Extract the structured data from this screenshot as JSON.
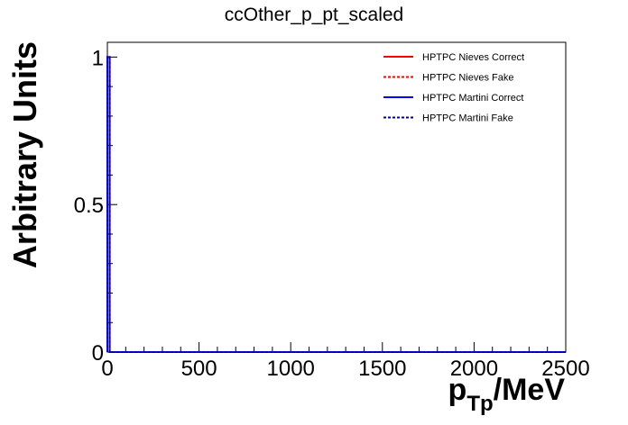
{
  "chart_data": {
    "type": "line",
    "title": "ccOther_p_pt_scaled",
    "ylabel": "Arbitrary Units",
    "xlabel": {
      "main": "p",
      "subscript": "Tp",
      "unit": "/MeV"
    },
    "xlim": [
      0,
      2500
    ],
    "ylim": [
      0,
      1.05
    ],
    "x_ticks": [
      0,
      500,
      1000,
      1500,
      2000,
      2500
    ],
    "x_tick_labels": [
      "0",
      "500",
      "1000",
      "1500",
      "2000",
      "2500"
    ],
    "y_ticks": [
      0,
      0.5,
      1
    ],
    "y_tick_labels": [
      "0",
      "0.5",
      "1"
    ],
    "legend_position": "top-right",
    "series": [
      {
        "name": "HPTPC Nieves Correct",
        "color": "#ff0000",
        "dash": "solid",
        "x": [
          0,
          0,
          12.5,
          12.5,
          2500
        ],
        "y": [
          0,
          1,
          1,
          0,
          0
        ]
      },
      {
        "name": "HPTPC Nieves Fake",
        "color": "#ff0000",
        "dash": "dotted",
        "x": [
          0,
          0,
          12.5,
          12.5,
          2500
        ],
        "y": [
          0,
          1,
          1,
          0,
          0
        ]
      },
      {
        "name": "HPTPC Martini Correct",
        "color": "#0000ff",
        "dash": "solid",
        "x": [
          0,
          0,
          12.5,
          12.5,
          2500
        ],
        "y": [
          0,
          1,
          1,
          0,
          0
        ]
      },
      {
        "name": "HPTPC Martini Fake",
        "color": "#000099",
        "dash": "dotted",
        "x": [
          0,
          0,
          12.5,
          12.5,
          2500
        ],
        "y": [
          0,
          1,
          1,
          0,
          0
        ]
      }
    ]
  }
}
